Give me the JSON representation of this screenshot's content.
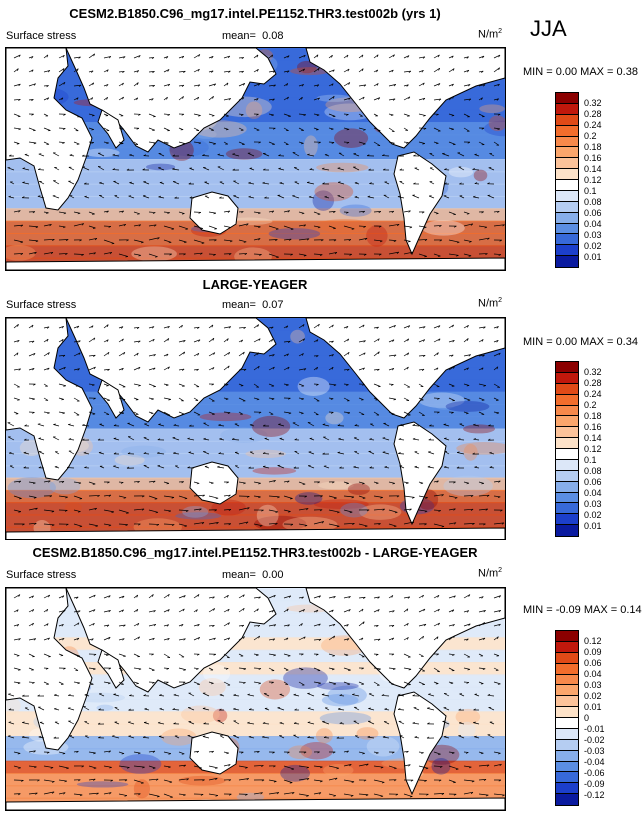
{
  "season": "JJA",
  "panels": [
    {
      "title": "CESM2.B1850.C96_mg17.intel.PE1152.THR3.test002b (yrs 1)",
      "var_label": "Surface stress",
      "mean_label": "mean=",
      "mean_value": "0.08",
      "units": "N/m",
      "units_sup": "2",
      "minmax": "MIN =  0.00 MAX =  0.38",
      "scale_mode": "sequential",
      "colorbar_labels": [
        "0.32",
        "0.28",
        "0.24",
        "0.2",
        "0.18",
        "0.16",
        "0.14",
        "0.12",
        "0.1",
        "0.08",
        "0.06",
        "0.04",
        "0.03",
        "0.02",
        "0.01"
      ],
      "colorbar_colors": [
        "#8b0000",
        "#c0180c",
        "#e04a17",
        "#f26d2c",
        "#f7894b",
        "#fba66c",
        "#fcc39a",
        "#fde2c8",
        "#ffffff",
        "#dce7f8",
        "#b5cdf2",
        "#87aeea",
        "#5b8ee3",
        "#3769d9",
        "#1c3fcb",
        "#0a1a9f"
      ]
    },
    {
      "title": "LARGE-YEAGER",
      "var_label": "Surface stress",
      "mean_label": "mean=",
      "mean_value": "0.07",
      "units": "N/m",
      "units_sup": "2",
      "minmax": "MIN =  0.00 MAX =  0.34",
      "scale_mode": "sequential",
      "colorbar_labels": [
        "0.32",
        "0.28",
        "0.24",
        "0.2",
        "0.18",
        "0.16",
        "0.14",
        "0.12",
        "0.1",
        "0.08",
        "0.06",
        "0.04",
        "0.03",
        "0.02",
        "0.01"
      ],
      "colorbar_colors": [
        "#8b0000",
        "#c0180c",
        "#e04a17",
        "#f26d2c",
        "#f7894b",
        "#fba66c",
        "#fcc39a",
        "#fde2c8",
        "#ffffff",
        "#dce7f8",
        "#b5cdf2",
        "#87aeea",
        "#5b8ee3",
        "#3769d9",
        "#1c3fcb",
        "#0a1a9f"
      ]
    },
    {
      "title": "CESM2.B1850.C96_mg17.intel.PE1152.THR3.test002b - LARGE-YEAGER",
      "var_label": "Surface stress",
      "mean_label": "mean=",
      "mean_value": "0.00",
      "units": "N/m",
      "units_sup": "2",
      "minmax": "MIN = -0.09 MAX =  0.14",
      "scale_mode": "diverging",
      "colorbar_labels": [
        "0.12",
        "0.09",
        "0.06",
        "0.04",
        "0.03",
        "0.02",
        "0.01",
        "0",
        "-0.01",
        "-0.02",
        "-0.03",
        "-0.04",
        "-0.06",
        "-0.09",
        "-0.12"
      ],
      "colorbar_colors": [
        "#8b0000",
        "#c0180c",
        "#e04a17",
        "#f26d2c",
        "#f7894b",
        "#fba66c",
        "#fcc39a",
        "#fde2c8",
        "#ffffff",
        "#dce7f8",
        "#b5cdf2",
        "#87aeea",
        "#5b8ee3",
        "#3769d9",
        "#1c3fcb",
        "#0a1a9f"
      ]
    }
  ]
}
